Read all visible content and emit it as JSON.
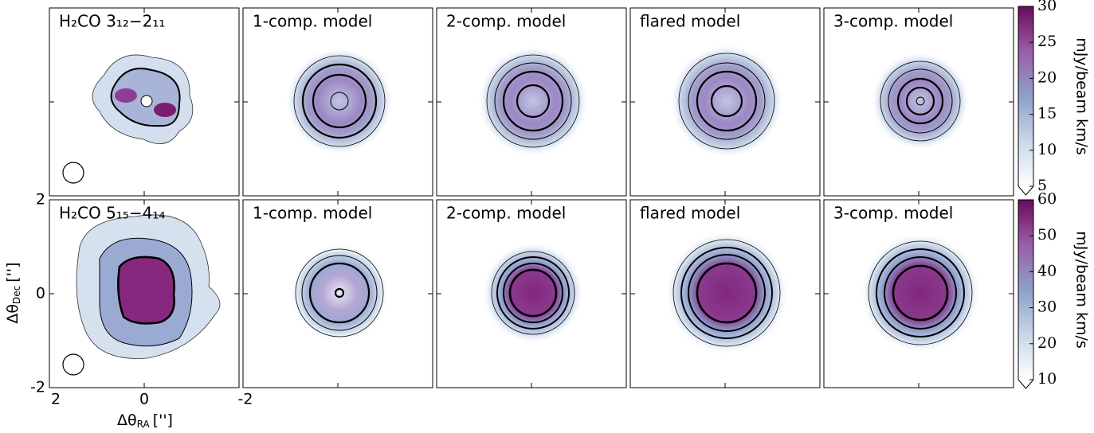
{
  "chart_data": {
    "type": "image-grid",
    "rows": [
      {
        "panel_titles": [
          "H₂CO 3₁₂−2₁₁",
          "1-comp. model",
          "2-comp. model",
          "flared model",
          "3-comp. model"
        ],
        "colorbar": {
          "label": "mJy/beam km/s",
          "lim": [
            5,
            30
          ],
          "ticks": [
            5,
            10,
            15,
            20,
            25,
            30
          ]
        }
      },
      {
        "panel_titles": [
          "H₂CO 5₁₅−4₁₄",
          "1-comp. model",
          "2-comp. model",
          "flared model",
          "3-comp. model"
        ],
        "colorbar": {
          "label": "mJy/beam km/s",
          "lim": [
            10,
            60
          ],
          "ticks": [
            10,
            20,
            30,
            40,
            50,
            60
          ]
        }
      }
    ],
    "xlabel": {
      "symbol": "Δθ",
      "subscript": "RA",
      "unit": "['']"
    },
    "ylabel": {
      "symbol": "Δθ",
      "subscript": "Dec",
      "unit": "['']"
    },
    "xlim": [
      2,
      -2
    ],
    "xticks": [
      2,
      0,
      -2
    ],
    "ylim": [
      -2,
      2
    ],
    "yticks": [
      -2,
      0,
      2
    ]
  }
}
